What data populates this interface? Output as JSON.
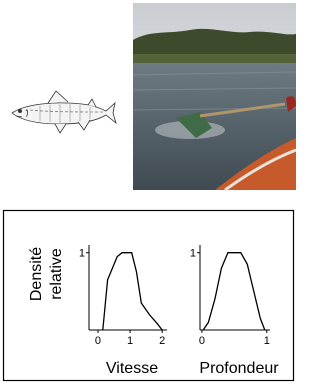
{
  "chart_data": [
    {
      "type": "line",
      "ylabel": "Densité relative",
      "xlabel": "Vitesse",
      "x": [
        0.15,
        0.3,
        0.45,
        0.6,
        0.75,
        1.05,
        1.2,
        1.35,
        1.6,
        1.85,
        2.0
      ],
      "values": [
        0,
        0.65,
        0.8,
        0.95,
        1,
        1,
        0.75,
        0.35,
        0.2,
        0.08,
        0
      ],
      "xlim": [
        -0.28,
        2.15
      ],
      "ylim": [
        0,
        1.1
      ],
      "xticks": [
        0,
        1,
        2
      ],
      "yticks": [
        1
      ],
      "color": "#000000"
    },
    {
      "type": "line",
      "xlabel": "Profondeur",
      "x": [
        0.02,
        0.1,
        0.2,
        0.3,
        0.4,
        0.6,
        0.7,
        0.8,
        0.9,
        0.97
      ],
      "values": [
        0,
        0.1,
        0.4,
        0.8,
        1,
        1,
        0.85,
        0.5,
        0.15,
        0
      ],
      "xlim": [
        -0.03,
        1.05
      ],
      "ylim": [
        0,
        1.1
      ],
      "xticks": [
        0,
        1
      ],
      "yticks": [
        1
      ],
      "color": "#000000"
    }
  ]
}
